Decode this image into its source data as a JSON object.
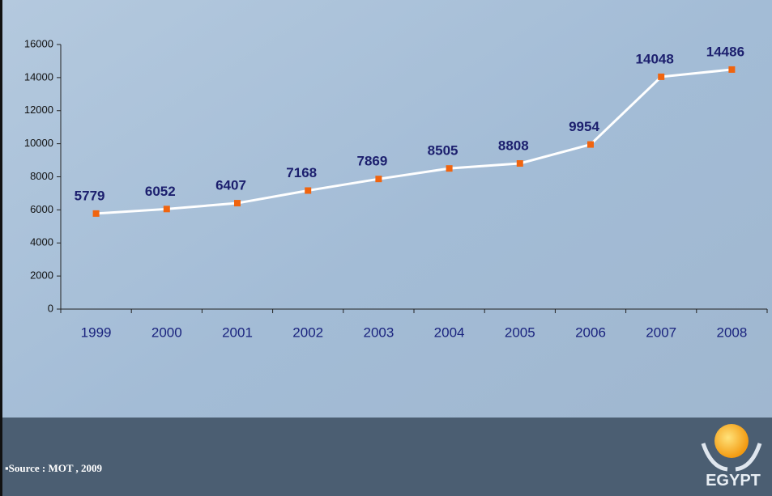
{
  "chart_data": {
    "type": "line",
    "categories": [
      "1999",
      "2000",
      "2001",
      "2002",
      "2003",
      "2004",
      "2005",
      "2006",
      "2007",
      "2008"
    ],
    "values": [
      5779,
      6052,
      6407,
      7168,
      7869,
      8505,
      8808,
      9954,
      14048,
      14486
    ],
    "color": "#ffffff",
    "marker_color": "#f0640f",
    "label_color": "#1c1f6e",
    "ylim": [
      0,
      16000
    ],
    "yticks": [
      0,
      2000,
      4000,
      6000,
      8000,
      10000,
      12000,
      14000,
      16000
    ],
    "grid": false
  },
  "source": "▪Source : MOT , 2009",
  "logo": "EGYPT"
}
